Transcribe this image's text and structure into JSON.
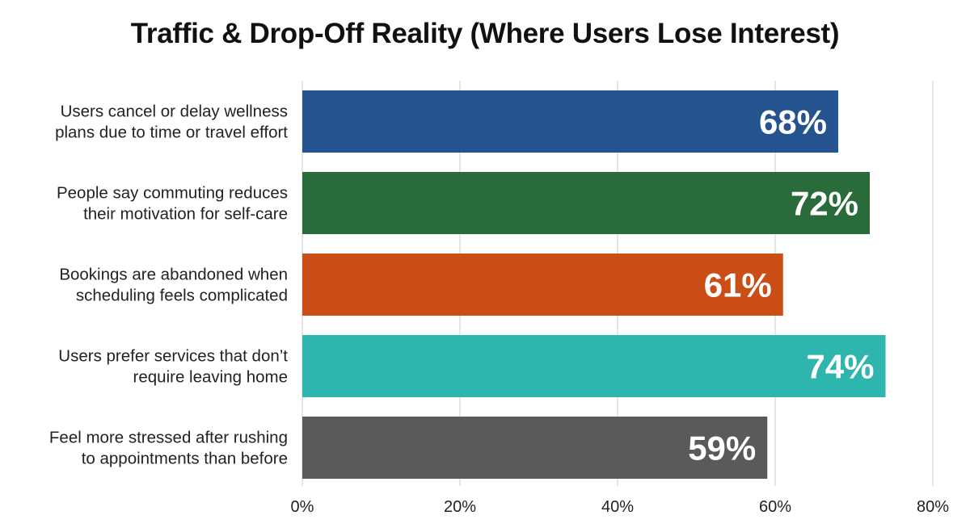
{
  "chart_data": {
    "type": "bar",
    "orientation": "horizontal",
    "title": "Traffic & Drop-Off Reality (Where Users Lose Interest)",
    "xlabel": "",
    "ylabel": "",
    "categories": [
      [
        "Users cancel or delay wellness",
        "plans due to time or travel effort"
      ],
      [
        "People say commuting reduces",
        "their motivation for self-care"
      ],
      [
        "Bookings are abandoned when",
        "scheduling feels complicated"
      ],
      [
        "Users prefer services that don’t",
        "require leaving home"
      ],
      [
        "Feel more stressed after rushing",
        "to appointments than before"
      ]
    ],
    "values": [
      68,
      72,
      61,
      74,
      59
    ],
    "value_labels": [
      "68%",
      "72%",
      "61%",
      "74%",
      "59%"
    ],
    "colors": [
      "#245390",
      "#2a6b3b",
      "#cc4e17",
      "#2eb5ae",
      "#5a5a5a"
    ],
    "xlim": [
      0,
      80
    ],
    "xticks": [
      0,
      20,
      40,
      60,
      80
    ],
    "xtick_labels": [
      "0%",
      "20%",
      "40%",
      "60%",
      "80%"
    ],
    "grid": true,
    "legend": "none"
  }
}
